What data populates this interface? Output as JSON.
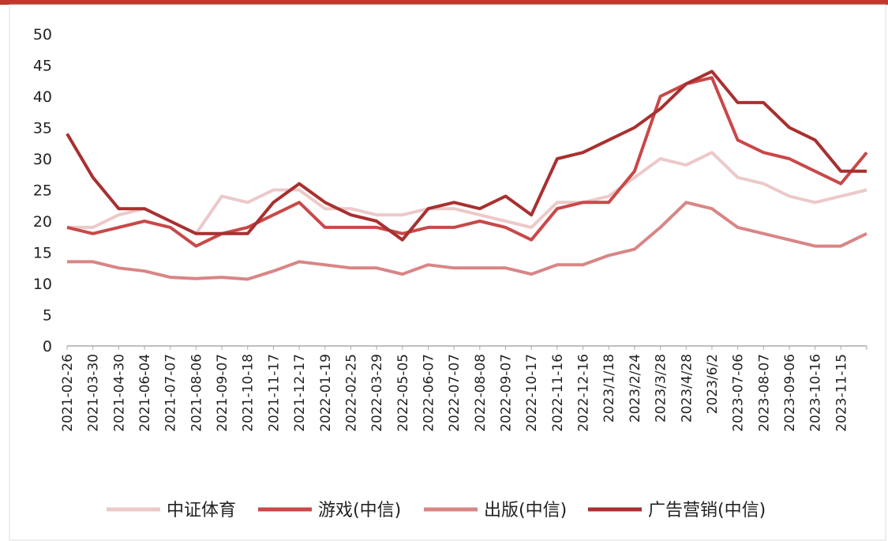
{
  "chart_data": {
    "type": "line",
    "categories": [
      "2021-02-26",
      "2021-03-30",
      "2021-04-30",
      "2021-06-04",
      "2021-07-07",
      "2021-08-06",
      "2021-09-07",
      "2021-10-18",
      "2021-11-17",
      "2021-12-17",
      "2022-01-19",
      "2022-02-25",
      "2022-03-29",
      "2022-05-05",
      "2022-06-07",
      "2022-07-07",
      "2022-08-08",
      "2022-09-07",
      "2022-10-17",
      "2022-11-16",
      "2022-12-16",
      "2023/1/18",
      "2023/2/24",
      "2023/3/28",
      "2023/4/28",
      "2023/6/2",
      "2023-07-06",
      "2023-08-07",
      "2023-09-06",
      "2023-10-16",
      "2023-11-15",
      null
    ],
    "series": [
      {
        "name": "中证体育",
        "color": "#ecc9c9",
        "values": [
          19,
          19,
          21,
          22,
          20,
          18,
          24,
          23,
          25,
          25,
          22,
          22,
          21,
          21,
          22,
          22,
          21,
          20,
          19,
          23,
          23,
          24,
          27,
          30,
          29,
          31,
          27,
          26,
          24,
          23,
          24,
          25
        ]
      },
      {
        "name": "游戏(中信)",
        "color": "#c94848",
        "values": [
          19,
          18,
          19,
          20,
          19,
          16,
          18,
          19,
          21,
          23,
          19,
          19,
          19,
          18,
          19,
          19,
          20,
          19,
          17,
          22,
          23,
          23,
          28,
          40,
          42,
          43,
          33,
          31,
          30,
          28,
          26,
          31
        ]
      },
      {
        "name": "出版(中信)",
        "color": "#d98585",
        "values": [
          13.5,
          13.5,
          12.5,
          12,
          11,
          10.8,
          11,
          10.7,
          12,
          13.5,
          13,
          12.5,
          12.5,
          11.5,
          13,
          12.5,
          12.5,
          12.5,
          11.5,
          13,
          13,
          14.5,
          15.5,
          19,
          23,
          22,
          19,
          18,
          17,
          16,
          16,
          18
        ]
      },
      {
        "name": "广告营销(中信)",
        "color": "#a83030",
        "values": [
          34,
          27,
          22,
          22,
          20,
          18,
          18,
          18,
          23,
          26,
          23,
          21,
          20,
          17,
          22,
          23,
          22,
          24,
          21,
          30,
          31,
          33,
          35,
          38,
          42,
          44,
          39,
          39,
          35,
          33,
          28,
          28
        ]
      }
    ],
    "ylim": [
      0,
      50
    ],
    "yticks": [
      0,
      5,
      10,
      15,
      20,
      25,
      30,
      35,
      40,
      45,
      50
    ]
  }
}
